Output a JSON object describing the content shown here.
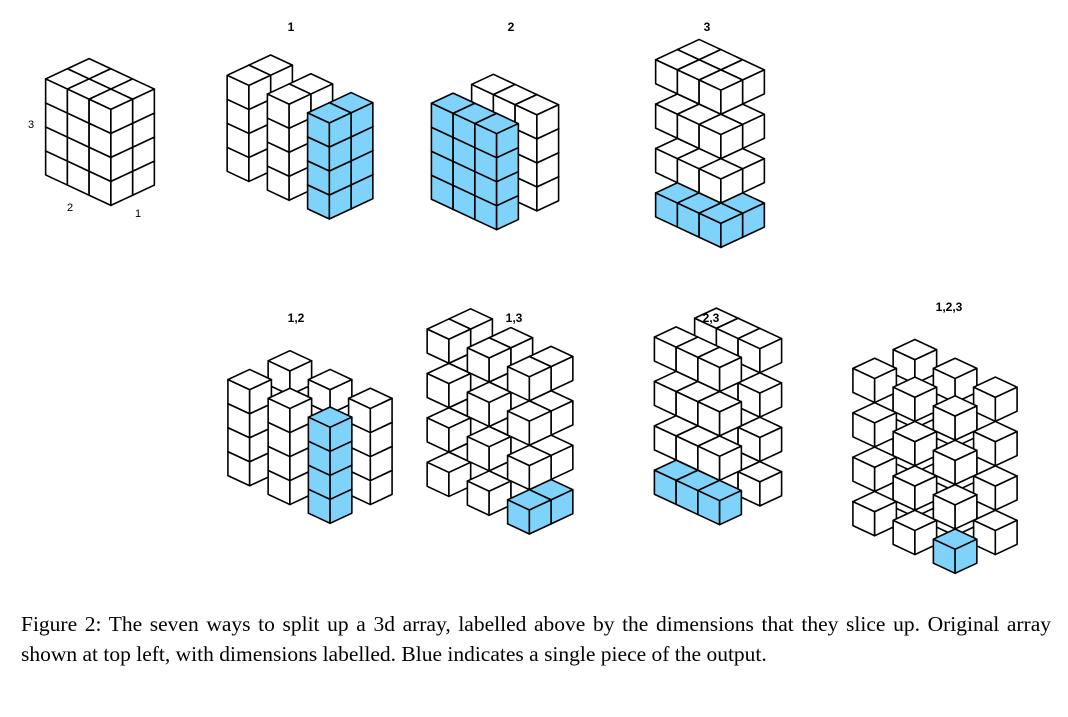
{
  "colors": {
    "highlight": "#7fd3fb",
    "face": "#ffffff",
    "edge": "#000000"
  },
  "original": {
    "grid": [
      3,
      2,
      4
    ],
    "dimension_labels": {
      "dim1": "1",
      "dim2": "2",
      "dim3": "3"
    }
  },
  "panels": [
    {
      "label": "1",
      "split": [
        1
      ]
    },
    {
      "label": "2",
      "split": [
        2
      ]
    },
    {
      "label": "3",
      "split": [
        3
      ]
    },
    {
      "label": "1,2",
      "split": [
        1,
        2
      ]
    },
    {
      "label": "1,3",
      "split": [
        1,
        3
      ]
    },
    {
      "label": "2,3",
      "split": [
        2,
        3
      ]
    },
    {
      "label": "1,2,3",
      "split": [
        1,
        2,
        3
      ]
    }
  ],
  "caption": "Figure 2: The seven ways to split up a 3d array, labelled above by the dimensions that they slice up. Original array shown at top left, with dimensions labelled. Blue indicates a single piece of the output."
}
